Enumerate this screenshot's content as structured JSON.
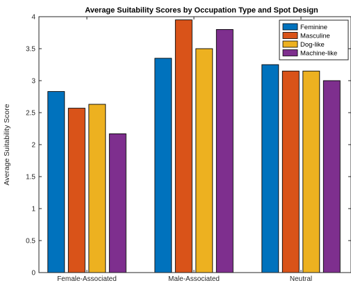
{
  "chart_data": {
    "type": "bar",
    "title": "Average Suitability Scores by Occupation Type and Spot Design",
    "xlabel": "",
    "ylabel": "Average Suitability Score",
    "ylim": [
      0,
      4
    ],
    "yticks": [
      "0",
      "0.5",
      "1",
      "1.5",
      "2",
      "2.5",
      "3",
      "3.5",
      "4"
    ],
    "categories": [
      "Female-Associated",
      "Male-Associated",
      "Neutral"
    ],
    "series": [
      {
        "name": "Feminine",
        "color": "#0072BD",
        "values": [
          2.83,
          3.35,
          3.25
        ]
      },
      {
        "name": "Masculine",
        "color": "#D95319",
        "values": [
          2.57,
          3.95,
          3.15
        ]
      },
      {
        "name": "Dog-like",
        "color": "#EDB120",
        "values": [
          2.63,
          3.5,
          3.15
        ]
      },
      {
        "name": "Machine-like",
        "color": "#7E2F8E",
        "values": [
          2.17,
          3.8,
          3.0
        ]
      }
    ],
    "legend_position": "top-right",
    "grid": false
  }
}
